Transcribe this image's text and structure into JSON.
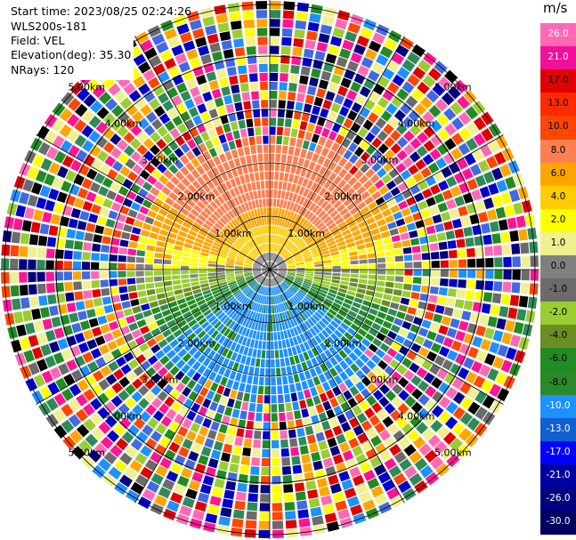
{
  "info": {
    "start_time": "Start time: 2023/08/25 02:24:26",
    "instrument": "WLS200s-181",
    "field": "Field: VEL",
    "elevation": "Elevation(deg): 35.30",
    "nrays": "NRays: 120"
  },
  "colorbar": {
    "unit": "m/s",
    "ticks": [
      "26.0",
      "21.0",
      "17.0",
      "13.0",
      "10.0",
      "8.0",
      "6.0",
      "4.0",
      "2.0",
      "1.0",
      "0.0",
      "-1.0",
      "-2.0",
      "-4.0",
      "-6.0",
      "-8.0",
      "-10.0",
      "-13.0",
      "-17.0",
      "-21.0",
      "-26.0",
      "-30.0"
    ],
    "colors": [
      "#ff69b4",
      "#f0109a",
      "#e00000",
      "#ff2a00",
      "#ff4500",
      "#ff7f50",
      "#ffa500",
      "#ffcc00",
      "#ffff00",
      "#f0f090",
      "#808080",
      "#6b6b6b",
      "#9acd32",
      "#6b8e23",
      "#228b22",
      "#2a8a2a",
      "#1e90ff",
      "#1060d0",
      "#0000ff",
      "#0000a0",
      "#000080",
      "#000060"
    ]
  },
  "range_rings": [
    "1.00km",
    "2.00km",
    "3.00km",
    "4.00km",
    "5.00km"
  ],
  "plot": {
    "nrays": 120,
    "nrings": 5
  }
}
